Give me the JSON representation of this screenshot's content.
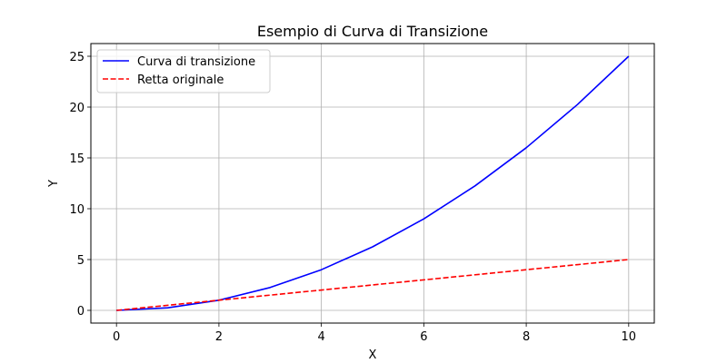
{
  "chart_data": {
    "type": "line",
    "title": "Esempio di Curva di Transizione",
    "xlabel": "X",
    "ylabel": "Y",
    "xlim": [
      -0.5,
      10.5
    ],
    "ylim": [
      -1.25,
      26.25
    ],
    "grid": true,
    "legend_position": "top-left",
    "xticks": [
      0,
      2,
      4,
      6,
      8,
      10
    ],
    "xtick_labels": [
      "0",
      "2",
      "4",
      "6",
      "8",
      "10"
    ],
    "yticks": [
      0,
      5,
      10,
      15,
      20,
      25
    ],
    "ytick_labels": [
      "0",
      "5",
      "10",
      "15",
      "20",
      "25"
    ],
    "series": [
      {
        "name": "Curva di transizione",
        "color": "#0000ff",
        "style": "solid",
        "x": [
          0,
          1,
          2,
          3,
          4,
          5,
          6,
          7,
          8,
          9,
          10
        ],
        "y": [
          0,
          0.25,
          1.0,
          2.25,
          4.0,
          6.25,
          9.0,
          12.25,
          16.0,
          20.25,
          25.0
        ]
      },
      {
        "name": "Retta originale",
        "color": "#ff0000",
        "style": "dashed",
        "x": [
          0,
          10
        ],
        "y": [
          0,
          5
        ]
      }
    ]
  }
}
